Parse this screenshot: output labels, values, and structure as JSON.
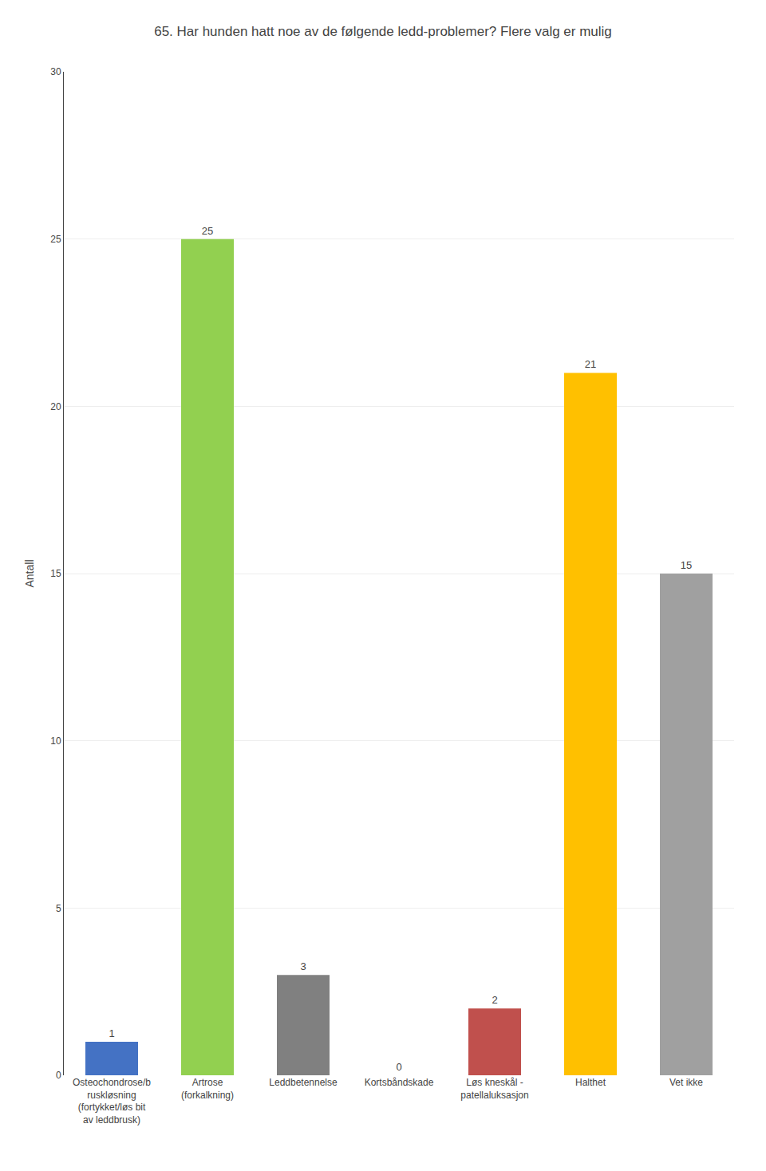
{
  "chart_data": {
    "type": "bar",
    "title": "65. Har hunden hatt noe av de følgende ledd-problemer? Flere valg er mulig",
    "ylabel": "Antall",
    "categories": [
      "Osteochondrose/b\nruskløsning\n(fortykket/løs bit\nav leddbrusk)",
      "Artrose\n(forkalkning)",
      "Leddbetennelse",
      "Kortsbåndskade",
      "Løs kneskål -\npatellaluksasjon",
      "Halthet",
      "Vet ikke"
    ],
    "values": [
      1,
      25,
      3,
      0,
      2,
      21,
      15
    ],
    "colors": [
      "#4472C4",
      "#92D050",
      "#808080",
      "#808080",
      "#C0504D",
      "#FFC000",
      "#A0A0A0"
    ],
    "ylim": [
      0,
      30
    ],
    "yticks": [
      0,
      5,
      10,
      15,
      20,
      25,
      30
    ],
    "grid": true,
    "data_labels": true
  }
}
